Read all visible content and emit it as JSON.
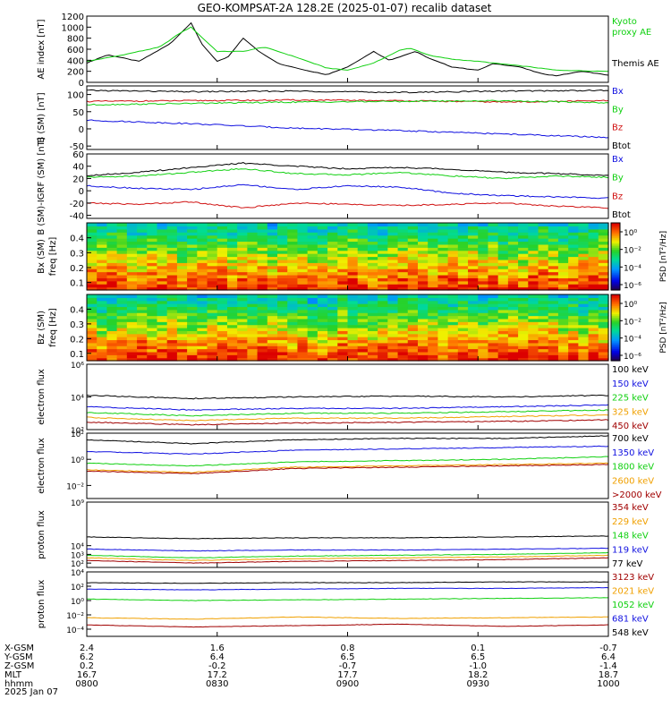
{
  "title": "GEO-KOMPSAT-2A 128.2E (2025-01-07) recalib dataset",
  "colors": {
    "black": "#000000",
    "blue": "#1010e0",
    "green": "#10d010",
    "red": "#d01010",
    "orange": "#f0a000",
    "darkred": "#a00000"
  },
  "chart_data": [
    {
      "type": "line",
      "ylabel": "AE index [nT]",
      "ylim": [
        0,
        1200
      ],
      "yticks": [
        "0",
        "200",
        "400",
        "600",
        "800",
        "1000",
        "1200"
      ],
      "legend": [
        {
          "label": "Kyoto",
          "color": "green"
        },
        {
          "label": "proxy AE",
          "color": "green"
        },
        {
          "label": "Themis AE",
          "color": "black"
        }
      ],
      "series": [
        {
          "name": "Themis AE",
          "color": "black",
          "x": [
            0,
            0.04,
            0.1,
            0.16,
            0.2,
            0.22,
            0.25,
            0.27,
            0.3,
            0.33,
            0.37,
            0.42,
            0.46,
            0.5,
            0.55,
            0.58,
            0.63,
            0.66,
            0.7,
            0.75,
            0.78,
            0.83,
            0.87,
            0.9,
            0.95,
            1
          ],
          "y": [
            350,
            500,
            380,
            700,
            1080,
            700,
            380,
            450,
            800,
            560,
            330,
            220,
            140,
            280,
            560,
            400,
            560,
            420,
            280,
            220,
            340,
            280,
            160,
            120,
            200,
            130
          ]
        },
        {
          "name": "Kyoto proxy AE",
          "color": "green",
          "x": [
            0,
            0.06,
            0.14,
            0.18,
            0.2,
            0.22,
            0.25,
            0.3,
            0.34,
            0.4,
            0.46,
            0.5,
            0.55,
            0.6,
            0.62,
            0.66,
            0.7,
            0.75,
            0.8,
            0.85,
            0.9,
            1
          ],
          "y": [
            380,
            480,
            640,
            900,
            1000,
            820,
            560,
            560,
            640,
            460,
            260,
            220,
            350,
            580,
            620,
            480,
            420,
            380,
            330,
            280,
            220,
            200
          ]
        }
      ]
    },
    {
      "type": "line",
      "ylabel": "B (SM) [nT]",
      "ylim": [
        -60,
        125
      ],
      "yticks": [
        "-50",
        "0",
        "50",
        "100"
      ],
      "legend": [
        {
          "label": "Bx",
          "color": "blue"
        },
        {
          "label": "By",
          "color": "green"
        },
        {
          "label": "Bz",
          "color": "red"
        },
        {
          "label": "Btot",
          "color": "black"
        }
      ],
      "series": [
        {
          "name": "Btot",
          "color": "black",
          "x": [
            0,
            0.2,
            0.4,
            0.6,
            0.8,
            1
          ],
          "y": [
            112,
            108,
            110,
            106,
            110,
            112
          ]
        },
        {
          "name": "Bz",
          "color": "red",
          "x": [
            0,
            0.2,
            0.4,
            0.6,
            0.8,
            1
          ],
          "y": [
            80,
            82,
            84,
            82,
            78,
            82
          ]
        },
        {
          "name": "By",
          "color": "green",
          "x": [
            0,
            0.2,
            0.4,
            0.6,
            0.8,
            1
          ],
          "y": [
            70,
            74,
            78,
            80,
            82,
            76
          ]
        },
        {
          "name": "Bx",
          "color": "blue",
          "x": [
            0,
            0.2,
            0.4,
            0.6,
            0.8,
            1
          ],
          "y": [
            25,
            15,
            2,
            -5,
            -15,
            -25
          ]
        }
      ]
    },
    {
      "type": "line",
      "ylabel": "B (SM)-IGRF (SM) [nT]",
      "ylim": [
        -45,
        60
      ],
      "yticks": [
        "-40",
        "-20",
        "0",
        "20",
        "40",
        "60"
      ],
      "legend": [
        {
          "label": "Bx",
          "color": "blue"
        },
        {
          "label": "By",
          "color": "green"
        },
        {
          "label": "Bz",
          "color": "red"
        },
        {
          "label": "Btot",
          "color": "black"
        }
      ],
      "series": [
        {
          "name": "Btot",
          "color": "black",
          "x": [
            0,
            0.1,
            0.2,
            0.3,
            0.4,
            0.5,
            0.6,
            0.7,
            0.8,
            0.9,
            1
          ],
          "y": [
            25,
            30,
            38,
            45,
            40,
            36,
            38,
            35,
            30,
            28,
            25
          ]
        },
        {
          "name": "By",
          "color": "green",
          "x": [
            0,
            0.1,
            0.2,
            0.3,
            0.4,
            0.5,
            0.6,
            0.7,
            0.8,
            0.9,
            1
          ],
          "y": [
            22,
            24,
            30,
            36,
            28,
            26,
            30,
            24,
            20,
            24,
            22
          ]
        },
        {
          "name": "Bx",
          "color": "blue",
          "x": [
            0,
            0.1,
            0.2,
            0.3,
            0.4,
            0.5,
            0.6,
            0.7,
            0.8,
            0.9,
            1
          ],
          "y": [
            8,
            4,
            2,
            10,
            2,
            8,
            6,
            -4,
            -8,
            -10,
            -12
          ]
        },
        {
          "name": "Bz",
          "color": "red",
          "x": [
            0,
            0.1,
            0.2,
            0.3,
            0.4,
            0.5,
            0.6,
            0.7,
            0.8,
            0.9,
            1
          ],
          "y": [
            -20,
            -22,
            -18,
            -28,
            -20,
            -22,
            -24,
            -22,
            -20,
            -25,
            -28
          ]
        }
      ]
    },
    {
      "type": "heatmap",
      "ylabel": "Bx (SM)",
      "ylabel2": "freq [Hz]",
      "ylim": [
        0.05,
        0.5
      ],
      "yticks": [
        "0.1",
        "0.2",
        "0.3",
        "0.4"
      ],
      "colorbar_label": "PSD [nT²/Hz]",
      "colorbar_ticks": [
        "10⁰",
        "10⁻²",
        "10⁻⁴",
        "10⁻⁶"
      ]
    },
    {
      "type": "heatmap",
      "ylabel": "Bz (SM)",
      "ylabel2": "freq [Hz]",
      "ylim": [
        0.05,
        0.5
      ],
      "yticks": [
        "0.1",
        "0.2",
        "0.3",
        "0.4"
      ],
      "colorbar_label": "PSD [nT²/Hz]",
      "colorbar_ticks": [
        "10⁰",
        "10⁻²",
        "10⁻⁴",
        "10⁻⁶"
      ]
    },
    {
      "type": "line",
      "ylabel": "electron flux",
      "scale": "log",
      "ylim_exp": [
        2,
        6
      ],
      "yticks_exp": [
        2,
        4,
        6
      ],
      "legend": [
        {
          "label": "100 keV",
          "color": "black"
        },
        {
          "label": "150 keV",
          "color": "blue"
        },
        {
          "label": "225 keV",
          "color": "green"
        },
        {
          "label": "325 keV",
          "color": "orange"
        },
        {
          "label": "450 keV",
          "color": "darkred"
        }
      ],
      "series": [
        {
          "name": "100 keV",
          "color": "black",
          "x": [
            0,
            0.2,
            0.4,
            0.6,
            0.8,
            1
          ],
          "y_exp": [
            4.1,
            3.9,
            4.0,
            4.05,
            4.0,
            4.1
          ]
        },
        {
          "name": "150 keV",
          "color": "blue",
          "x": [
            0,
            0.2,
            0.4,
            0.6,
            0.8,
            1
          ],
          "y_exp": [
            3.4,
            3.2,
            3.3,
            3.3,
            3.4,
            3.5
          ]
        },
        {
          "name": "225 keV",
          "color": "green",
          "x": [
            0,
            0.2,
            0.4,
            0.6,
            0.8,
            1
          ],
          "y_exp": [
            3.05,
            2.85,
            3.0,
            3.0,
            3.1,
            3.2
          ]
        },
        {
          "name": "325 keV",
          "color": "orange",
          "x": [
            0,
            0.2,
            0.4,
            0.6,
            0.8,
            1
          ],
          "y_exp": [
            2.75,
            2.55,
            2.7,
            2.7,
            2.8,
            2.9
          ]
        },
        {
          "name": "450 keV",
          "color": "darkred",
          "x": [
            0,
            0.2,
            0.4,
            0.6,
            0.8,
            1
          ],
          "y_exp": [
            2.45,
            2.3,
            2.4,
            2.45,
            2.5,
            2.6
          ]
        }
      ]
    },
    {
      "type": "line",
      "ylabel": "electron flux",
      "scale": "log",
      "ylim_exp": [
        -3,
        2
      ],
      "yticks_exp": [
        -2,
        0,
        2
      ],
      "legend": [
        {
          "label": "700 keV",
          "color": "black"
        },
        {
          "label": "1350 keV",
          "color": "blue"
        },
        {
          "label": "1800 keV",
          "color": "green"
        },
        {
          "label": "2600 keV",
          "color": "orange"
        },
        {
          "label": ">2000 keV",
          "color": "darkred"
        }
      ],
      "series": [
        {
          "name": "700 keV",
          "color": "black",
          "x": [
            0,
            0.2,
            0.4,
            0.6,
            0.8,
            1
          ],
          "y_exp": [
            1.5,
            1.2,
            1.5,
            1.6,
            1.6,
            1.8
          ]
        },
        {
          "name": "1350 keV",
          "color": "blue",
          "x": [
            0,
            0.2,
            0.4,
            0.6,
            0.8,
            1
          ],
          "y_exp": [
            0.6,
            0.4,
            0.7,
            0.8,
            0.9,
            1.0
          ]
        },
        {
          "name": "1800 keV",
          "color": "green",
          "x": [
            0,
            0.2,
            0.4,
            0.6,
            0.8,
            1
          ],
          "y_exp": [
            -0.3,
            -0.5,
            -0.2,
            -0.1,
            0.0,
            0.2
          ]
        },
        {
          "name": "2600 keV",
          "color": "orange",
          "x": [
            0,
            0.2,
            0.4,
            0.6,
            0.8,
            1
          ],
          "y_exp": [
            -0.8,
            -1.0,
            -0.6,
            -0.5,
            -0.4,
            -0.3
          ]
        },
        {
          "name": ">2000 keV",
          "color": "darkred",
          "x": [
            0,
            0.2,
            0.4,
            0.6,
            0.8,
            1
          ],
          "y_exp": [
            -0.9,
            -1.1,
            -0.7,
            -0.6,
            -0.5,
            -0.4
          ]
        }
      ]
    },
    {
      "type": "line",
      "ylabel": "proton flux",
      "scale": "log",
      "ylim_exp": [
        1.5,
        9
      ],
      "yticks_exp": [
        2,
        3,
        4,
        9
      ],
      "legend": [
        {
          "label": "354 keV",
          "color": "darkred"
        },
        {
          "label": "229 keV",
          "color": "orange"
        },
        {
          "label": "148 keV",
          "color": "green"
        },
        {
          "label": "119 keV",
          "color": "blue"
        },
        {
          "label": "77 keV",
          "color": "black"
        }
      ],
      "series": [
        {
          "name": "77 keV",
          "color": "black",
          "x": [
            0,
            0.2,
            0.4,
            0.6,
            0.8,
            1
          ],
          "y_exp": [
            5.0,
            4.8,
            4.9,
            4.9,
            5.0,
            5.1
          ]
        },
        {
          "name": "119 keV",
          "color": "blue",
          "x": [
            0,
            0.2,
            0.4,
            0.6,
            0.8,
            1
          ],
          "y_exp": [
            3.6,
            3.4,
            3.5,
            3.5,
            3.6,
            3.7
          ]
        },
        {
          "name": "148 keV",
          "color": "green",
          "x": [
            0,
            0.2,
            0.4,
            0.6,
            0.8,
            1
          ],
          "y_exp": [
            2.9,
            2.6,
            2.8,
            2.9,
            3.0,
            3.2
          ]
        },
        {
          "name": "229 keV",
          "color": "orange",
          "x": [
            0,
            0.2,
            0.4,
            0.6,
            0.8,
            1
          ],
          "y_exp": [
            2.6,
            2.3,
            2.5,
            2.6,
            2.7,
            2.9
          ]
        },
        {
          "name": "354 keV",
          "color": "darkred",
          "x": [
            0,
            0.2,
            0.4,
            0.6,
            0.8,
            1
          ],
          "y_exp": [
            2.3,
            2.0,
            2.2,
            2.3,
            2.4,
            2.6
          ]
        }
      ]
    },
    {
      "type": "line",
      "ylabel": "proton flux",
      "scale": "log",
      "ylim_exp": [
        -5,
        4
      ],
      "yticks_exp": [
        -4,
        -2,
        0,
        2,
        4
      ],
      "legend": [
        {
          "label": "3123 keV",
          "color": "darkred"
        },
        {
          "label": "2021 keV",
          "color": "orange"
        },
        {
          "label": "1052 keV",
          "color": "green"
        },
        {
          "label": "681 keV",
          "color": "blue"
        },
        {
          "label": "548 keV",
          "color": "black"
        }
      ],
      "series": [
        {
          "name": "548 keV",
          "color": "black",
          "x": [
            0,
            0.2,
            0.4,
            0.6,
            0.8,
            1
          ],
          "y_exp": [
            2.5,
            2.4,
            2.5,
            2.5,
            2.6,
            2.6
          ]
        },
        {
          "name": "681 keV",
          "color": "blue",
          "x": [
            0,
            0.2,
            0.4,
            0.6,
            0.8,
            1
          ],
          "y_exp": [
            1.6,
            1.5,
            1.6,
            1.7,
            1.7,
            1.8
          ]
        },
        {
          "name": "1052 keV",
          "color": "green",
          "x": [
            0,
            0.2,
            0.4,
            0.6,
            0.8,
            1
          ],
          "y_exp": [
            0.2,
            0.0,
            0.1,
            0.2,
            0.3,
            0.4
          ]
        },
        {
          "name": "2021 keV",
          "color": "orange",
          "x": [
            0,
            0.2,
            0.4,
            0.6,
            0.8,
            1
          ],
          "y_exp": [
            -2.4,
            -2.6,
            -2.3,
            -2.5,
            -2.4,
            -2.3
          ]
        },
        {
          "name": "3123 keV",
          "color": "darkred",
          "x": [
            0,
            0.2,
            0.4,
            0.6,
            0.8,
            1
          ],
          "y_exp": [
            -3.4,
            -3.7,
            -3.5,
            -3.3,
            -3.6,
            -3.4
          ]
        }
      ]
    }
  ],
  "orbit_table": {
    "rows": [
      {
        "label": "X-GSM",
        "values": [
          "2.4",
          "1.6",
          "0.8",
          "0.1",
          "-0.7"
        ]
      },
      {
        "label": "Y-GSM",
        "values": [
          "6.2",
          "6.4",
          "6.5",
          "6.5",
          "6.4"
        ]
      },
      {
        "label": "Z-GSM",
        "values": [
          "0.2",
          "-0.2",
          "-0.7",
          "-1.0",
          "-1.4"
        ]
      },
      {
        "label": "MLT",
        "values": [
          "16.7",
          "17.2",
          "17.7",
          "18.2",
          "18.7"
        ]
      },
      {
        "label": "hhmm",
        "values": [
          "0800",
          "0830",
          "0900",
          "0930",
          "1000"
        ]
      }
    ],
    "date": "2025 Jan 07"
  }
}
